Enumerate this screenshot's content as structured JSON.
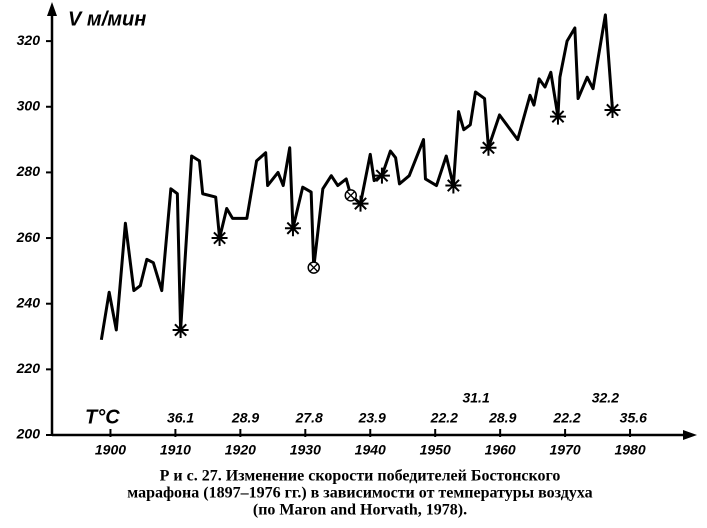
{
  "chart_data": {
    "type": "line",
    "y_label": "V м/мин",
    "x_label": "T°C",
    "xlim": [
      1891,
      1990
    ],
    "ylim": [
      200,
      331
    ],
    "xticks": [
      1900,
      1910,
      1920,
      1930,
      1940,
      1950,
      1960,
      1970,
      1980
    ],
    "yticks": [
      200,
      220,
      240,
      260,
      280,
      300,
      320
    ],
    "color": "#000000",
    "x": [
      1898.6,
      1899.8,
      1900.9,
      1902.3,
      1903.6,
      1904.6,
      1905.6,
      1906.6,
      1907.9,
      1909.3,
      1910.3,
      1910.8,
      1912.5,
      1913.7,
      1914.2,
      1916.2,
      1916.8,
      1917.9,
      1918.8,
      1921,
      1922.5,
      1923.9,
      1924.2,
      1925.8,
      1926.6,
      1927.6,
      1928.1,
      1929.6,
      1930.9,
      1931.3,
      1932.7,
      1934,
      1935,
      1936.3,
      1937,
      1938.5,
      1940,
      1940.6,
      1941.8,
      1943.1,
      1943.9,
      1944.5,
      1946,
      1948.2,
      1948.5,
      1950.2,
      1951.7,
      1952.8,
      1953.6,
      1954.4,
      1955.4,
      1956.2,
      1957.6,
      1958.2,
      1959.9,
      1962.7,
      1964.6,
      1965.2,
      1966,
      1966.9,
      1967.8,
      1968.9,
      1969.2,
      1970.3,
      1971.5,
      1972,
      1973.4,
      1974.3,
      1976.2,
      1977.3
    ],
    "values": [
      229,
      243.5,
      232,
      264.5,
      244,
      245.5,
      253.5,
      252.5,
      244,
      275,
      273.5,
      232,
      285,
      283.5,
      273.5,
      272.5,
      260,
      269,
      266,
      266,
      283.5,
      286,
      276,
      280,
      276,
      287.5,
      263,
      275.5,
      274,
      251,
      275,
      279,
      276,
      278,
      273,
      270.5,
      285.5,
      277.5,
      279,
      286.5,
      284.5,
      276.5,
      279,
      290,
      278,
      276,
      285,
      276,
      298.5,
      293,
      294.5,
      304.5,
      302.5,
      287.5,
      297.5,
      290,
      303.5,
      300.5,
      308.5,
      306,
      310.5,
      297,
      309,
      320,
      324,
      302.5,
      309,
      305.5,
      328,
      299
    ],
    "hot_markers": {
      "x": [
        1910.8,
        1916.8,
        1928.1,
        1938.5,
        1941.8,
        1952.8,
        1958.2,
        1968.9,
        1977.3
      ],
      "values": [
        232,
        260,
        263,
        270.5,
        279,
        276,
        287.5,
        297,
        299
      ]
    },
    "cross_markers": {
      "x": [
        1931.3,
        1937
      ],
      "values": [
        251,
        273
      ]
    },
    "temperature_rows": [
      [
        {
          "text": "36.1",
          "x": 1910.8
        },
        {
          "text": "28.9",
          "x": 1920.8
        },
        {
          "text": "27.8",
          "x": 1930.6
        },
        {
          "text": "23.9",
          "x": 1940.3
        },
        {
          "text": "22.2",
          "x": 1951.4
        },
        {
          "text": "28.9",
          "x": 1960.4
        },
        {
          "text": "22.2",
          "x": 1970.3
        },
        {
          "text": "35.6",
          "x": 1980.5
        }
      ],
      [
        {
          "text": "31.1",
          "x": 1956.3
        },
        {
          "text": "32.2",
          "x": 1976.2
        }
      ]
    ],
    "caption": [
      "Р и с.  27.  Изменение скорости победителей Бостонского",
      "марафона (1897–1976 гг.) в зависимости от температуры воздуха",
      "(по Maron and Horvath, 1978)."
    ]
  }
}
